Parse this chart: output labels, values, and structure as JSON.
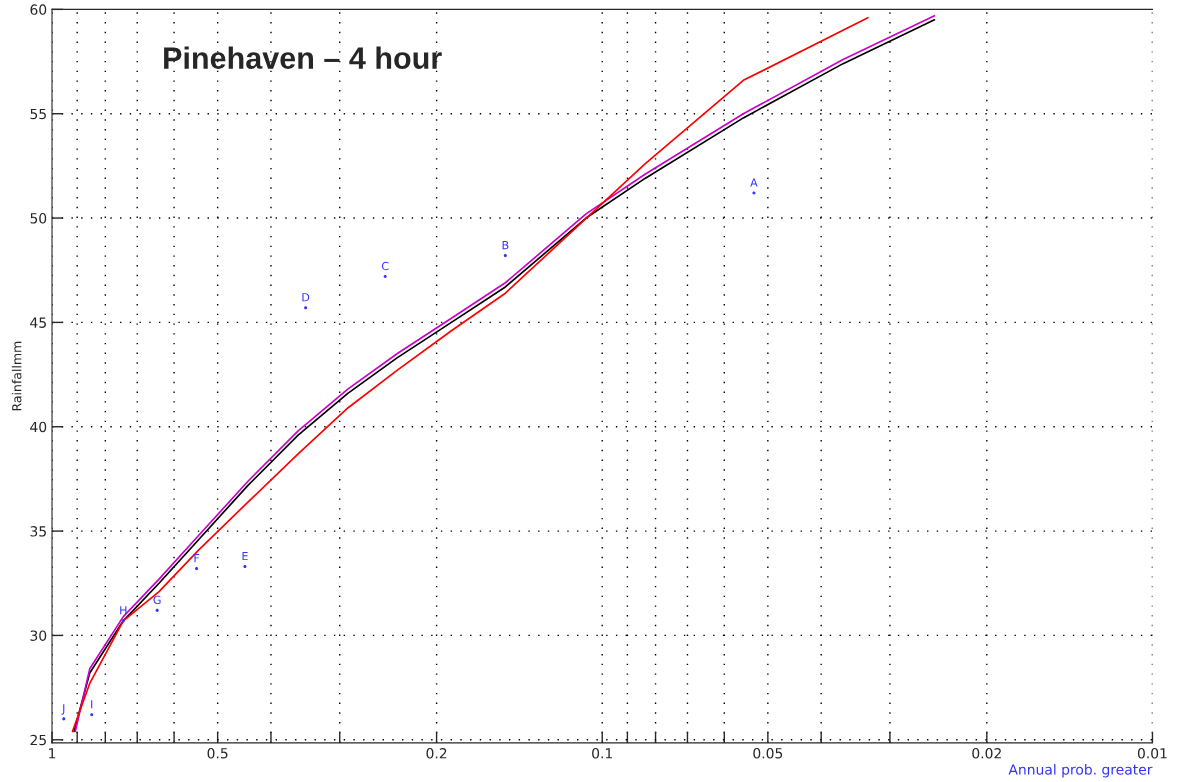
{
  "chart_data": {
    "type": "line",
    "title": "Pinehaven – 4 hour",
    "xlabel": "Annual prob. greater",
    "ylabel": "Rainfallmm",
    "log": "x",
    "xlim": [
      1,
      0.01
    ],
    "ylim": [
      24.85,
      60
    ],
    "xticks": [
      1,
      {
        "value": 0.9,
        "label": null
      },
      {
        "value": 0.8,
        "label": null
      },
      {
        "value": 0.7,
        "label": null
      },
      {
        "value": 0.6,
        "label": null
      },
      0.5,
      {
        "value": 0.4,
        "label": null
      },
      {
        "value": 0.3,
        "label": null
      },
      0.2,
      0.1,
      {
        "value": 0.09,
        "label": null
      },
      {
        "value": 0.08,
        "label": null
      },
      {
        "value": 0.07,
        "label": null
      },
      {
        "value": 0.06,
        "label": null
      },
      0.05,
      {
        "value": 0.04,
        "label": null
      },
      {
        "value": 0.03,
        "label": null
      },
      0.02,
      0.01
    ],
    "yticks": [
      25,
      30,
      35,
      40,
      45,
      50,
      55,
      60
    ],
    "grid": true,
    "line_style": "solid",
    "series": [
      {
        "type": "scatter",
        "marker": "circle",
        "color": "#3333ff",
        "x": [
          0.053,
          0.15,
          0.248,
          0.346,
          0.446,
          0.546,
          0.644,
          0.742,
          0.847,
          0.952
        ],
        "values": [
          51.2,
          48.2,
          47.2,
          45.7,
          33.3,
          33.2,
          31.2,
          30.7,
          26.2,
          26.0
        ],
        "value_labels": [
          "A",
          "B",
          "C",
          "D",
          "E",
          "F",
          "G",
          "H",
          "I",
          "J"
        ]
      },
      {
        "color": "#000000",
        "x": [
          0.912,
          0.854,
          0.742,
          0.639,
          0.541,
          0.44,
          0.357,
          0.29,
          0.236,
          0.188,
          0.15,
          0.107,
          0.0836,
          0.0554,
          0.0365,
          0.0249
        ],
        "values": [
          25.4,
          28.2,
          30.7,
          32.5,
          34.6,
          37.2,
          39.6,
          41.6,
          43.3,
          45.0,
          46.7,
          50.0,
          51.9,
          54.8,
          57.4,
          59.5
        ]
      },
      {
        "color": "#cc00cc",
        "x": [
          0.907,
          0.854,
          0.742,
          0.639,
          0.541,
          0.44,
          0.357,
          0.29,
          0.236,
          0.188,
          0.15,
          0.107,
          0.0836,
          0.0554,
          0.0365,
          0.0249
        ],
        "values": [
          25.4,
          28.4,
          30.9,
          32.7,
          34.8,
          37.4,
          39.8,
          41.8,
          43.5,
          45.2,
          46.9,
          50.2,
          52.1,
          55.0,
          57.6,
          59.7
        ]
      },
      {
        "color": "#ff0000",
        "x": [
          0.918,
          0.854,
          0.742,
          0.639,
          0.541,
          0.44,
          0.357,
          0.29,
          0.236,
          0.188,
          0.15,
          0.0836,
          0.0554,
          0.0329
        ],
        "values": [
          25.4,
          27.7,
          30.7,
          32.1,
          34.1,
          36.4,
          38.7,
          40.9,
          42.7,
          44.6,
          46.4,
          52.6,
          56.6,
          59.6
        ]
      }
    ]
  }
}
